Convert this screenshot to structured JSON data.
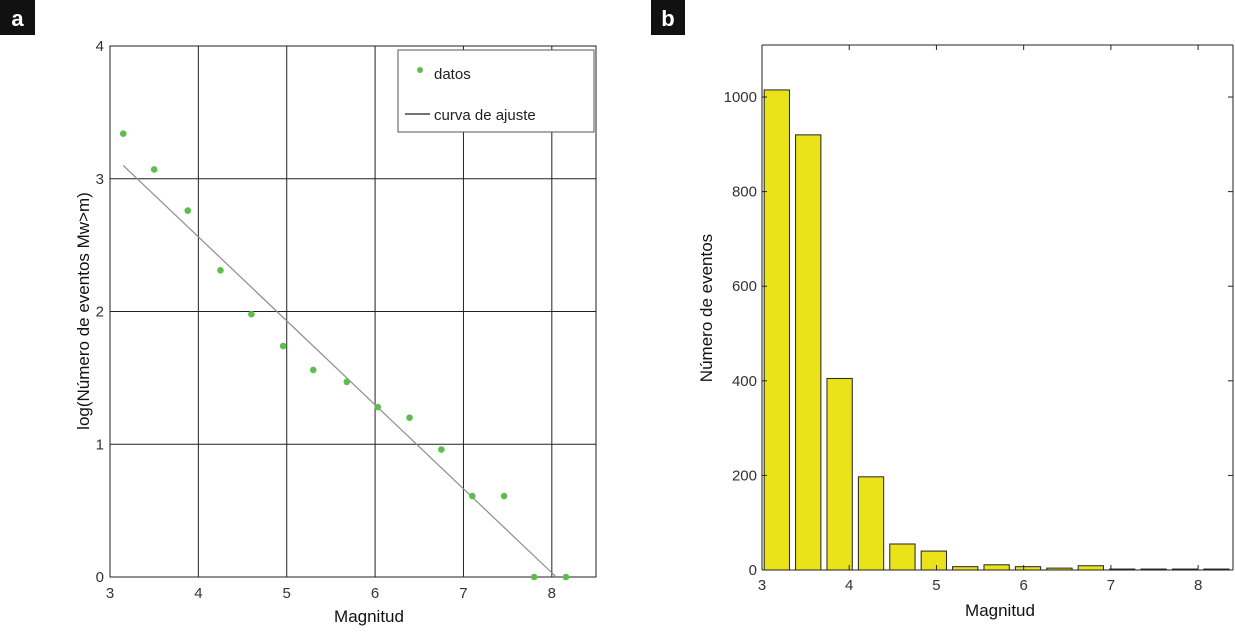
{
  "chart_data": [
    {
      "panel": "a",
      "type": "scatter",
      "title": "",
      "xlabel": "Magnitud",
      "ylabel": "log(Número de eventos Mw>m)",
      "xlim": [
        3,
        8.5
      ],
      "ylim": [
        0,
        4
      ],
      "xticks": [
        "3",
        "4",
        "5",
        "6",
        "7",
        "8"
      ],
      "yticks": [
        "0",
        "1",
        "2",
        "3",
        "4"
      ],
      "grid": true,
      "legend_position": "top-right",
      "series": [
        {
          "name": "datos",
          "kind": "points",
          "color": "#5cbf4c",
          "x": [
            3.15,
            3.5,
            3.88,
            4.25,
            4.6,
            4.96,
            5.3,
            5.68,
            6.03,
            6.39,
            6.75,
            7.1,
            7.46,
            7.8,
            8.16
          ],
          "y": [
            3.34,
            3.07,
            2.76,
            2.31,
            1.98,
            1.74,
            1.56,
            1.47,
            1.28,
            1.2,
            0.96,
            0.61,
            0.61,
            0.0,
            0.0
          ]
        },
        {
          "name": "curva de ajuste",
          "kind": "line",
          "color": "#8c8c8c",
          "x": [
            3.15,
            8.05
          ],
          "y": [
            3.1,
            0.0
          ]
        }
      ]
    },
    {
      "panel": "b",
      "type": "bar",
      "title": "",
      "xlabel": "Magnitud",
      "ylabel": "Número de eventos",
      "xlim": [
        3,
        8.4
      ],
      "ylim": [
        0,
        1110
      ],
      "xticks": [
        "3",
        "4",
        "5",
        "6",
        "7",
        "8"
      ],
      "yticks": [
        "0",
        "200",
        "400",
        "600",
        "800",
        "1000"
      ],
      "grid": false,
      "bar_color": "#ebe31a",
      "bar_width": 0.29,
      "bar_centers": [
        3.17,
        3.53,
        3.89,
        4.25,
        4.61,
        4.97,
        5.33,
        5.69,
        6.05,
        6.41,
        6.77,
        7.13,
        7.49,
        7.85,
        8.21
      ],
      "values": [
        1015,
        920,
        405,
        197,
        55,
        40,
        7,
        11,
        7,
        4,
        9,
        2,
        2,
        2,
        2
      ]
    }
  ],
  "panels": {
    "a": "a",
    "b": "b"
  }
}
